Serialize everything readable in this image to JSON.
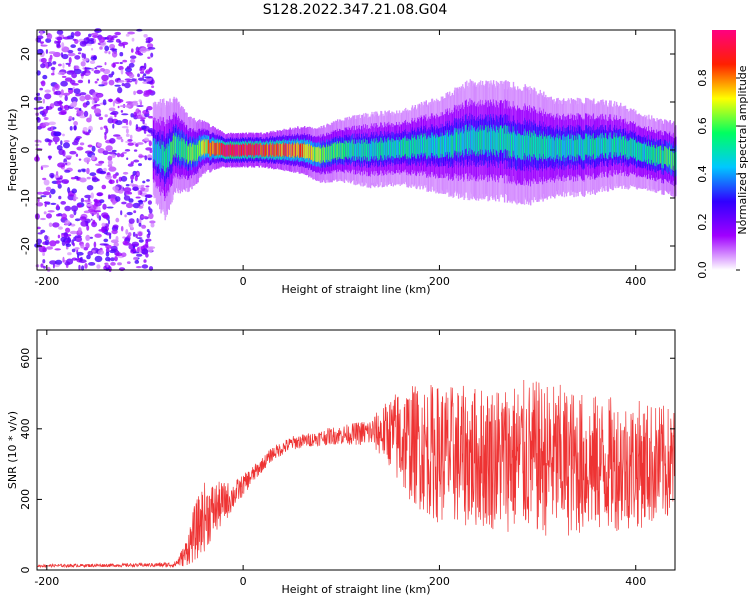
{
  "figure": {
    "title": "S128.2022.347.21.08.G04"
  },
  "chart_data": [
    {
      "type": "heatmap",
      "xlabel": "Height of straight line (km)",
      "ylabel": "Frequency (Hz)",
      "xlim": [
        -210,
        440
      ],
      "ylim": [
        -25,
        25
      ],
      "xticks": [
        -200,
        0,
        200,
        400
      ],
      "yticks": [
        -20,
        -10,
        0,
        10,
        20
      ],
      "xtick_labels": [
        "-200",
        "0",
        "200",
        "400"
      ],
      "ytick_labels": [
        "-20",
        "-10",
        "0",
        "10",
        "20"
      ],
      "colorbar": {
        "label": "Normalized spectral amplitude",
        "range": [
          0,
          1
        ],
        "ticks": [
          0.0,
          0.2,
          0.4,
          0.6,
          0.8
        ],
        "tick_labels": [
          "0.0",
          "0.2",
          "0.4",
          "0.6",
          "0.8"
        ],
        "colormap": [
          "#ffffff",
          "#a000ff",
          "#3000ff",
          "#00c8ff",
          "#00ff60",
          "#ffff00",
          "#ff2000",
          "#ff0080"
        ]
      },
      "noise_region_x": [
        -210,
        -92
      ],
      "ridge": [
        {
          "x": -92,
          "y": 0,
          "a": 0.45,
          "w": 4
        },
        {
          "x": -80,
          "y": -2,
          "a": 0.5,
          "w": 5
        },
        {
          "x": -70,
          "y": 1,
          "a": 0.55,
          "w": 4
        },
        {
          "x": -55,
          "y": -1,
          "a": 0.6,
          "w": 3
        },
        {
          "x": -40,
          "y": 0.5,
          "a": 0.7,
          "w": 2
        },
        {
          "x": -20,
          "y": 0,
          "a": 0.95,
          "w": 1.2
        },
        {
          "x": 0,
          "y": 0,
          "a": 0.95,
          "w": 1.2
        },
        {
          "x": 20,
          "y": 0,
          "a": 0.9,
          "w": 1.2
        },
        {
          "x": 40,
          "y": 0,
          "a": 0.85,
          "w": 1.5
        },
        {
          "x": 60,
          "y": 0,
          "a": 0.8,
          "w": 1.8
        },
        {
          "x": 80,
          "y": -1,
          "a": 0.6,
          "w": 2.2
        },
        {
          "x": 100,
          "y": 0,
          "a": 0.55,
          "w": 2.5
        },
        {
          "x": 130,
          "y": 0,
          "a": 0.5,
          "w": 3
        },
        {
          "x": 160,
          "y": 0.5,
          "a": 0.5,
          "w": 3
        },
        {
          "x": 200,
          "y": 1,
          "a": 0.5,
          "w": 4
        },
        {
          "x": 230,
          "y": 2,
          "a": 0.5,
          "w": 5
        },
        {
          "x": 260,
          "y": 2,
          "a": 0.5,
          "w": 5
        },
        {
          "x": 290,
          "y": 1,
          "a": 0.5,
          "w": 5
        },
        {
          "x": 320,
          "y": 0.5,
          "a": 0.5,
          "w": 4
        },
        {
          "x": 350,
          "y": 0.5,
          "a": 0.5,
          "w": 4
        },
        {
          "x": 380,
          "y": 1,
          "a": 0.5,
          "w": 3.5
        },
        {
          "x": 410,
          "y": -0.5,
          "a": 0.5,
          "w": 3
        },
        {
          "x": 440,
          "y": -2,
          "a": 0.6,
          "w": 3
        }
      ]
    },
    {
      "type": "line",
      "xlabel": "Height of straight line (km)",
      "ylabel": "SNR (10 * v/v)",
      "xlim": [
        -210,
        440
      ],
      "ylim": [
        0,
        680
      ],
      "xticks": [
        -200,
        0,
        200,
        400
      ],
      "yticks": [
        0,
        200,
        400,
        600
      ],
      "xtick_labels": [
        "-200",
        "0",
        "200",
        "400"
      ],
      "ytick_labels": [
        "0",
        "200",
        "400",
        "600"
      ],
      "color": "#ee3333",
      "series": [
        {
          "envelope_x": [
            -210,
            -100,
            -70,
            -60,
            -50,
            -40,
            -30,
            -20,
            -10,
            0,
            10,
            20,
            30,
            50,
            70,
            90,
            110,
            130,
            150,
            160,
            180,
            200,
            230,
            260,
            290,
            320,
            350,
            380,
            410,
            440
          ],
          "mean": [
            12,
            14,
            15,
            40,
            100,
            150,
            170,
            190,
            210,
            240,
            270,
            300,
            330,
            360,
            370,
            380,
            385,
            390,
            390,
            370,
            350,
            330,
            320,
            320,
            320,
            310,
            300,
            300,
            300,
            300
          ],
          "amplitude": [
            4,
            5,
            8,
            30,
            80,
            100,
            80,
            60,
            40,
            30,
            25,
            20,
            20,
            20,
            20,
            25,
            30,
            40,
            100,
            150,
            180,
            200,
            200,
            210,
            220,
            220,
            200,
            190,
            180,
            160
          ]
        }
      ]
    }
  ]
}
